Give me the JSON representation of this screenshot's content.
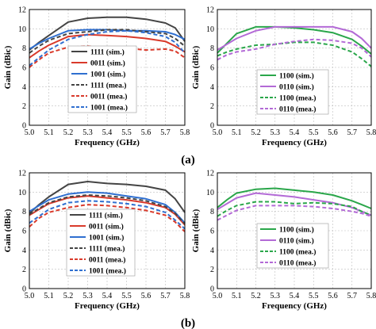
{
  "figure": {
    "rows": [
      {
        "caption": "(a)"
      },
      {
        "caption": "(b)"
      }
    ]
  },
  "chart_data": [
    {
      "type": "line",
      "panel": "a-left",
      "xlabel": "Frequency (GHz)",
      "ylabel": "Gain (dBic)",
      "xlim": [
        5.0,
        5.8
      ],
      "ylim": [
        0,
        12
      ],
      "xticks": [
        "5.0",
        "5.1",
        "5.2",
        "5.3",
        "5.4",
        "5.5",
        "5.6",
        "5.7",
        "5.8"
      ],
      "yticks": [
        "0",
        "2",
        "4",
        "6",
        "8",
        "10",
        "12"
      ],
      "legend": "bottom-center",
      "x": [
        5.0,
        5.05,
        5.1,
        5.2,
        5.3,
        5.4,
        5.5,
        5.6,
        5.7,
        5.75,
        5.8
      ],
      "series": [
        {
          "name": "1111 (sim.)",
          "color": "#444444",
          "style": "solid",
          "values": [
            7.8,
            8.6,
            9.3,
            10.7,
            11.1,
            11.2,
            11.2,
            11.0,
            10.6,
            10.1,
            8.7
          ]
        },
        {
          "name": "0011 (sim.)",
          "color": "#d93a2b",
          "style": "solid",
          "values": [
            7.0,
            7.7,
            8.3,
            9.2,
            9.4,
            9.3,
            9.2,
            9.0,
            8.7,
            8.2,
            7.6
          ]
        },
        {
          "name": "1001 (sim.)",
          "color": "#2f6fd0",
          "style": "solid",
          "values": [
            7.9,
            8.5,
            9.0,
            9.8,
            9.9,
            9.9,
            9.8,
            9.8,
            9.7,
            9.4,
            8.9
          ]
        },
        {
          "name": "1111 (mea.)",
          "color": "#444444",
          "style": "dashed",
          "values": [
            7.5,
            8.2,
            8.8,
            9.5,
            9.7,
            9.9,
            9.9,
            9.7,
            9.5,
            9.0,
            8.2
          ]
        },
        {
          "name": "0011 (mea.)",
          "color": "#d93a2b",
          "style": "dashed",
          "values": [
            6.0,
            6.8,
            7.5,
            8.1,
            8.2,
            8.0,
            8.0,
            7.8,
            7.9,
            7.7,
            7.0
          ]
        },
        {
          "name": "1001 (mea.)",
          "color": "#2f6fd0",
          "style": "dashed",
          "values": [
            6.2,
            7.0,
            7.8,
            8.9,
            9.4,
            9.7,
            9.8,
            9.6,
            9.2,
            8.6,
            7.5
          ]
        }
      ]
    },
    {
      "type": "line",
      "panel": "a-right",
      "xlabel": "Frequency (GHz)",
      "ylabel": "Gain (dBic)",
      "xlim": [
        5.0,
        5.8
      ],
      "ylim": [
        0,
        12
      ],
      "xticks": [
        "5.0",
        "5.1",
        "5.2",
        "5.3",
        "5.4",
        "5.5",
        "5.6",
        "5.7",
        "5.8"
      ],
      "yticks": [
        "0",
        "2",
        "4",
        "6",
        "8",
        "10",
        "12"
      ],
      "legend": "bottom-center",
      "x": [
        5.0,
        5.05,
        5.1,
        5.2,
        5.3,
        5.4,
        5.5,
        5.6,
        5.7,
        5.75,
        5.8
      ],
      "series": [
        {
          "name": "1100 (sim.)",
          "color": "#2aa64a",
          "style": "solid",
          "values": [
            7.5,
            8.5,
            9.5,
            10.2,
            10.2,
            10.1,
            9.9,
            9.6,
            8.9,
            8.2,
            7.4
          ]
        },
        {
          "name": "0110 (sim.)",
          "color": "#b36ad6",
          "style": "solid",
          "values": [
            7.8,
            8.4,
            9.0,
            9.8,
            10.2,
            10.2,
            10.2,
            10.2,
            9.7,
            9.0,
            8.0
          ]
        },
        {
          "name": "1100 (mea.)",
          "color": "#2aa64a",
          "style": "dashed",
          "values": [
            7.2,
            7.6,
            7.9,
            8.3,
            8.4,
            8.6,
            8.6,
            8.3,
            7.6,
            6.9,
            6.1
          ]
        },
        {
          "name": "0110 (mea.)",
          "color": "#b36ad6",
          "style": "dashed",
          "values": [
            6.8,
            7.3,
            7.6,
            7.9,
            8.4,
            8.7,
            8.9,
            8.8,
            8.5,
            8.0,
            7.1
          ]
        }
      ]
    },
    {
      "type": "line",
      "panel": "b-left",
      "xlabel": "Frequency (GHz)",
      "ylabel": "Gain (dBic)",
      "xlim": [
        5.0,
        5.8
      ],
      "ylim": [
        0,
        12
      ],
      "xticks": [
        "5.0",
        "5.1",
        "5.2",
        "5.3",
        "5.4",
        "5.5",
        "5.6",
        "5.7",
        "5.8"
      ],
      "yticks": [
        "0",
        "2",
        "4",
        "6",
        "8",
        "10",
        "12"
      ],
      "legend": "bottom-center",
      "x": [
        5.0,
        5.05,
        5.1,
        5.2,
        5.3,
        5.4,
        5.5,
        5.6,
        5.7,
        5.75,
        5.8
      ],
      "series": [
        {
          "name": "1111 (sim.)",
          "color": "#444444",
          "style": "solid",
          "values": [
            7.8,
            8.7,
            9.5,
            10.8,
            11.1,
            10.9,
            10.8,
            10.6,
            10.2,
            9.3,
            7.9
          ]
        },
        {
          "name": "0011 (sim.)",
          "color": "#d93a2b",
          "style": "solid",
          "values": [
            7.6,
            8.2,
            8.8,
            9.4,
            9.6,
            9.4,
            9.2,
            8.9,
            8.4,
            7.7,
            6.6
          ]
        },
        {
          "name": "1001 (sim.)",
          "color": "#2f6fd0",
          "style": "solid",
          "values": [
            8.0,
            8.6,
            9.2,
            9.8,
            10.0,
            9.9,
            9.6,
            9.3,
            8.7,
            7.9,
            6.8
          ]
        },
        {
          "name": "1111 (mea.)",
          "color": "#444444",
          "style": "dashed",
          "values": [
            7.7,
            8.3,
            8.9,
            9.5,
            9.7,
            9.6,
            9.4,
            9.1,
            8.5,
            7.8,
            6.7
          ]
        },
        {
          "name": "0011 (mea.)",
          "color": "#d93a2b",
          "style": "dashed",
          "values": [
            6.4,
            7.3,
            7.9,
            8.4,
            8.7,
            8.6,
            8.4,
            8.1,
            7.6,
            6.9,
            5.9
          ]
        },
        {
          "name": "1001 (mea.)",
          "color": "#2f6fd0",
          "style": "dashed",
          "values": [
            6.8,
            7.5,
            8.2,
            8.9,
            9.1,
            9.0,
            8.8,
            8.5,
            7.9,
            7.1,
            6.2
          ]
        }
      ]
    },
    {
      "type": "line",
      "panel": "b-right",
      "xlabel": "Frequency (GHz)",
      "ylabel": "Gain (dBic)",
      "xlim": [
        5.0,
        5.8
      ],
      "ylim": [
        0,
        12
      ],
      "xticks": [
        "5.0",
        "5.1",
        "5.2",
        "5.3",
        "5.4",
        "5.5",
        "5.6",
        "5.7",
        "5.8"
      ],
      "yticks": [
        "0",
        "2",
        "4",
        "6",
        "8",
        "10",
        "12"
      ],
      "legend": "bottom-center",
      "x": [
        5.0,
        5.05,
        5.1,
        5.2,
        5.3,
        5.4,
        5.5,
        5.6,
        5.7,
        5.75,
        5.8
      ],
      "series": [
        {
          "name": "1100 (sim.)",
          "color": "#2aa64a",
          "style": "solid",
          "values": [
            8.4,
            9.2,
            9.9,
            10.3,
            10.4,
            10.2,
            10.0,
            9.7,
            9.1,
            8.7,
            8.3
          ]
        },
        {
          "name": "0110 (sim.)",
          "color": "#b36ad6",
          "style": "solid",
          "values": [
            8.2,
            8.8,
            9.4,
            9.9,
            9.7,
            9.5,
            9.2,
            8.9,
            8.4,
            8.0,
            7.6
          ]
        },
        {
          "name": "1100 (mea.)",
          "color": "#2aa64a",
          "style": "dashed",
          "values": [
            7.5,
            8.1,
            8.6,
            9.0,
            9.0,
            8.8,
            8.9,
            8.8,
            8.5,
            8.0,
            7.6
          ]
        },
        {
          "name": "0110 (mea.)",
          "color": "#b36ad6",
          "style": "dashed",
          "values": [
            7.1,
            7.6,
            8.1,
            8.6,
            8.6,
            8.6,
            8.5,
            8.3,
            8.0,
            7.8,
            7.5
          ]
        }
      ]
    }
  ]
}
